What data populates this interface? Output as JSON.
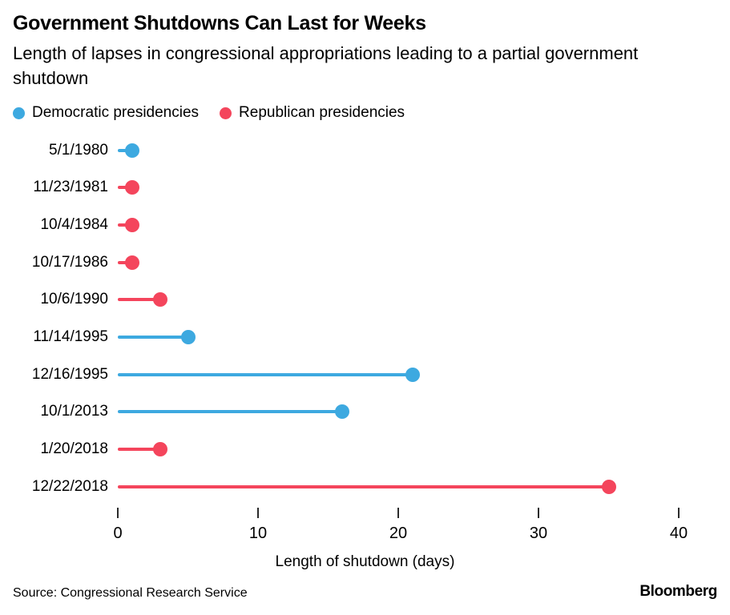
{
  "header": {
    "title": "Government Shutdowns Can Last for Weeks",
    "subtitle": "Length of lapses in congressional appropriations leading to a partial government shutdown"
  },
  "legend": {
    "items": [
      {
        "key": "democratic",
        "label": "Democratic presidencies",
        "color": "#3DA9E0"
      },
      {
        "key": "republican",
        "label": "Republican presidencies",
        "color": "#F4455C"
      }
    ]
  },
  "chart_data": {
    "type": "bar",
    "variant": "horizontal-lollipop",
    "title": "Government Shutdowns Can Last for Weeks",
    "subtitle": "Length of lapses in congressional appropriations leading to a partial government shutdown",
    "categories": [
      "5/1/1980",
      "11/23/1981",
      "10/4/1984",
      "10/17/1986",
      "10/6/1990",
      "11/14/1995",
      "12/16/1995",
      "10/1/2013",
      "1/20/2018",
      "12/22/2018"
    ],
    "values": [
      1,
      1,
      1,
      1,
      3,
      5,
      21,
      16,
      3,
      35
    ],
    "point_series": [
      "democratic",
      "republican",
      "republican",
      "republican",
      "republican",
      "democratic",
      "democratic",
      "democratic",
      "republican",
      "republican"
    ],
    "series_colors": {
      "democratic": "#3DA9E0",
      "republican": "#F4455C"
    },
    "xlabel": "Length of shutdown (days)",
    "ylabel": "",
    "xlim": [
      0,
      40
    ],
    "xticks": [
      0,
      10,
      20,
      30,
      40
    ],
    "grid": "off",
    "legend_position": "top-left"
  },
  "footer": {
    "source": "Source: Congressional Research Service",
    "brand": "Bloomberg"
  }
}
